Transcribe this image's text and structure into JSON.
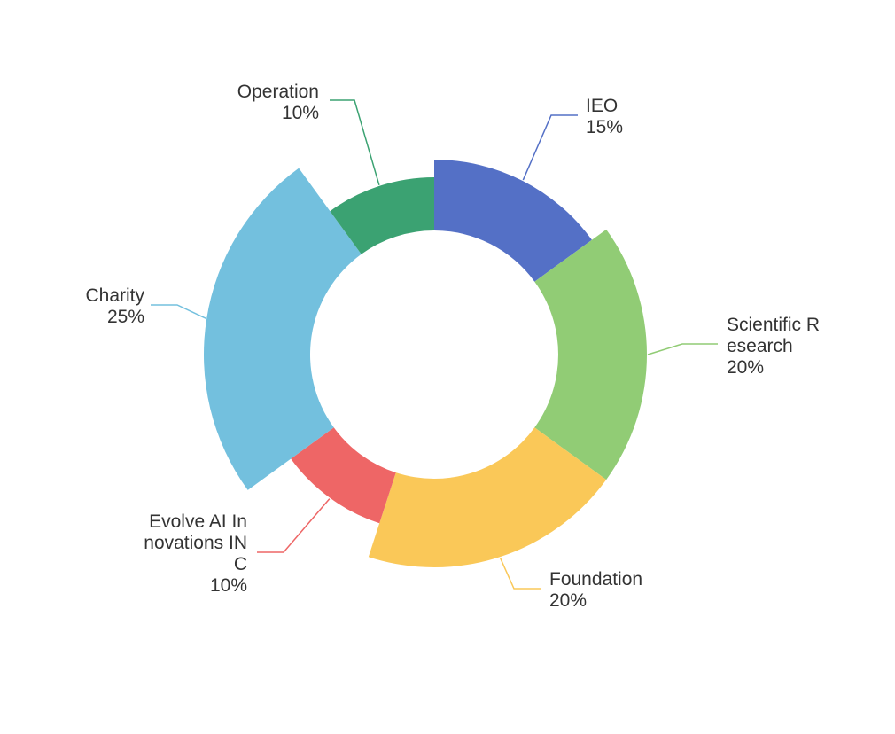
{
  "chart_data": {
    "type": "pie",
    "variant": "nightingale-rose-donut",
    "legend": "none",
    "slices": [
      {
        "name": "IEO",
        "value": 15,
        "percent_label": "15%",
        "label_lines": [
          "IEO"
        ],
        "color": "#5470c6"
      },
      {
        "name": "Scientific Research",
        "value": 20,
        "percent_label": "20%",
        "label_lines": [
          "Scientific R",
          "esearch"
        ],
        "color": "#91cc75"
      },
      {
        "name": "Foundation",
        "value": 20,
        "percent_label": "20%",
        "label_lines": [
          "Foundation"
        ],
        "color": "#fac858"
      },
      {
        "name": "Evolve AI Innovations INC",
        "value": 10,
        "percent_label": "10%",
        "label_lines": [
          "Evolve AI In",
          "novations IN",
          "C"
        ],
        "color": "#ee6666"
      },
      {
        "name": "Charity",
        "value": 25,
        "percent_label": "25%",
        "label_lines": [
          "Charity"
        ],
        "color": "#73c0de"
      },
      {
        "name": "Operation",
        "value": 10,
        "percent_label": "10%",
        "label_lines": [
          "Operation"
        ],
        "color": "#3ba272"
      }
    ]
  }
}
